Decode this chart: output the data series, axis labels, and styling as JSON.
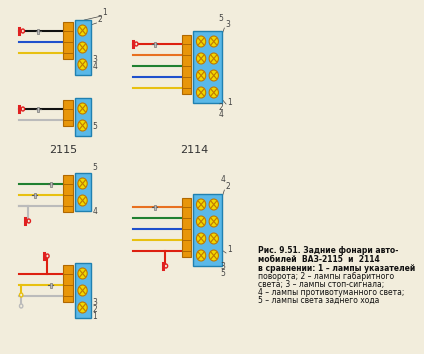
{
  "bg_color": "#f2eddc",
  "title_bold": "Рис. 9.51. Задние фонари авто-",
  "title_bold2": "мобилей  ВАЗ-2115  и  2114",
  "title_normal": "в сравнении: 1 – лампы указателей\nповорота; 2 – лампы габаритного\nсвета; 3 – лампы стоп-сигнала;\n4 – лампы противотуманного света;\n5 – лампы света заднего хода",
  "label_2115": "2115",
  "label_2114": "2114",
  "orange": "#e8960a",
  "orange_dark": "#b06800",
  "blue": "#5ab8e8",
  "blue_dark": "#2080b0",
  "yellow_lamp": "#f0d800",
  "lamp_edge": "#c07800",
  "fuse_red": "#e02020",
  "fuse_circle": "#dd2020",
  "num_color": "#444444",
  "line_color": "#444444",
  "wires": {
    "red": "#dd2010",
    "blue": "#2050cc",
    "green": "#208030",
    "orange": "#e87020",
    "yellow": "#e8c010",
    "black": "#111111",
    "white_stripe": "#bbbbbb"
  }
}
